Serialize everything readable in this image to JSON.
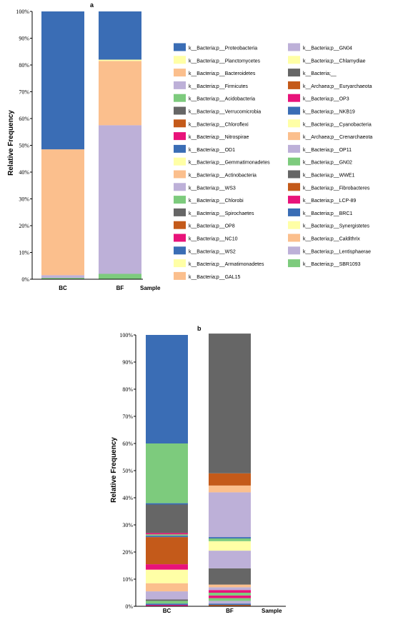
{
  "chart_data": [
    {
      "type": "bar",
      "stacked": true,
      "panel_label": "a",
      "xlabel": "Sample",
      "ylabel": "Relative Frequency",
      "categories": [
        "BC",
        "BF"
      ],
      "ylim": [
        0,
        100
      ],
      "yticks": [
        "0%",
        "10%",
        "20%",
        "30%",
        "40%",
        "50%",
        "60%",
        "70%",
        "80%",
        "90%",
        "100%"
      ],
      "legend_columns": 2,
      "legend": [
        {
          "name": "k__Bacteria;p__Proteobacteria",
          "color": "#3a6db5"
        },
        {
          "name": "k__Bacteria;p__Planctomycetes",
          "color": "#ffffa6"
        },
        {
          "name": "k__Bacteria;p__Bacteroidetes",
          "color": "#fbbf8d"
        },
        {
          "name": "k__Bacteria;p__Firmicutes",
          "color": "#bdb0d8"
        },
        {
          "name": "k__Bacteria;p__Acidobacteria",
          "color": "#7dcb7d"
        },
        {
          "name": "k__Bacteria;p__Verrucomicrobia",
          "color": "#666666"
        },
        {
          "name": "k__Bacteria;p__Chloroflexi",
          "color": "#c45a1a"
        },
        {
          "name": "k__Bacteria;p__Nitrospirae",
          "color": "#e8137a"
        },
        {
          "name": "k__Bacteria;p__OD1",
          "color": "#3a6db5"
        },
        {
          "name": "k__Bacteria;p__Gemmatimonadetes",
          "color": "#ffffa6"
        },
        {
          "name": "k__Bacteria;p__Actinobacteria",
          "color": "#fbbf8d"
        },
        {
          "name": "k__Bacteria;p__WS3",
          "color": "#bdb0d8"
        },
        {
          "name": "k__Bacteria;p__Chlorobi",
          "color": "#7dcb7d"
        },
        {
          "name": "k__Bacteria;p__Spirochaetes",
          "color": "#666666"
        },
        {
          "name": "k__Bacteria;p__OP8",
          "color": "#c45a1a"
        },
        {
          "name": "k__Bacteria;p__NC10",
          "color": "#e8137a"
        },
        {
          "name": "k__Bacteria;p__WS2",
          "color": "#3a6db5"
        },
        {
          "name": "k__Bacteria;p__Armatimonadetes",
          "color": "#ffffa6"
        },
        {
          "name": "k__Bacteria;p__GAL15",
          "color": "#fbbf8d"
        },
        {
          "name": "k__Bacteria;p__GN04",
          "color": "#bdb0d8"
        },
        {
          "name": "k__Bacteria;p__Chlamydiae",
          "color": "#ffffa6"
        },
        {
          "name": "k__Bacteria;__",
          "color": "#666666"
        },
        {
          "name": "k__Archaea;p__Euryarchaeota",
          "color": "#c45a1a"
        },
        {
          "name": "k__Bacteria;p__OP3",
          "color": "#e8137a"
        },
        {
          "name": "k__Bacteria;p__NKB19",
          "color": "#3a6db5"
        },
        {
          "name": "k__Bacteria;p__Cyanobacteria",
          "color": "#ffffa6"
        },
        {
          "name": "k__Archaea;p__Crenarchaeota",
          "color": "#fbbf8d"
        },
        {
          "name": "k__Bacteria;p__OP11",
          "color": "#bdb0d8"
        },
        {
          "name": "k__Bacteria;p__GN02",
          "color": "#7dcb7d"
        },
        {
          "name": "k__Bacteria;p__WWE1",
          "color": "#666666"
        },
        {
          "name": "k__Bacteria;p__Fibrobacteres",
          "color": "#c45a1a"
        },
        {
          "name": "k__Bacteria;p__LCP-89",
          "color": "#e8137a"
        },
        {
          "name": "k__Bacteria;p__BRC1",
          "color": "#3a6db5"
        },
        {
          "name": "k__Bacteria;p__Synergistetes",
          "color": "#ffffa6"
        },
        {
          "name": "k__Bacteria;p__Caldithrix",
          "color": "#fbbf8d"
        },
        {
          "name": "k__Bacteria;p__Lentisphaerae",
          "color": "#bdb0d8"
        },
        {
          "name": "k__Bacteria;p__SBR1093",
          "color": "#7dcb7d"
        }
      ],
      "stacks": [
        {
          "category": "BC",
          "segments": [
            {
              "value": 0.5,
              "color": "#7dcb7d"
            },
            {
              "value": 1.0,
              "color": "#bdb0d8"
            },
            {
              "value": 47.0,
              "color": "#fbbf8d"
            },
            {
              "value": 51.5,
              "color": "#3a6db5"
            }
          ]
        },
        {
          "category": "BF",
          "segments": [
            {
              "value": 2.0,
              "color": "#7dcb7d"
            },
            {
              "value": 55.5,
              "color": "#bdb0d8"
            },
            {
              "value": 24.0,
              "color": "#fbbf8d"
            },
            {
              "value": 0.5,
              "color": "#ffffa6"
            },
            {
              "value": 18.0,
              "color": "#3a6db5"
            }
          ]
        }
      ]
    },
    {
      "type": "bar",
      "stacked": true,
      "panel_label": "b",
      "xlabel": "Sample",
      "ylabel": "Relative Frequency",
      "categories": [
        "BC",
        "BF"
      ],
      "ylim": [
        0,
        100
      ],
      "yticks": [
        "0%",
        "10%",
        "20%",
        "30%",
        "40%",
        "50%",
        "60%",
        "70%",
        "80%",
        "90%",
        "100%"
      ],
      "stacks": [
        {
          "category": "BC",
          "segments": [
            {
              "value": 0.5,
              "color": "#e8137a"
            },
            {
              "value": 0.5,
              "color": "#3a6db5"
            },
            {
              "value": 1.0,
              "color": "#7dcb7d"
            },
            {
              "value": 0.5,
              "color": "#666666"
            },
            {
              "value": 3.0,
              "color": "#bdb0d8"
            },
            {
              "value": 3.0,
              "color": "#fbbf8d"
            },
            {
              "value": 5.0,
              "color": "#ffffa6"
            },
            {
              "value": 2.0,
              "color": "#e8137a"
            },
            {
              "value": 10.0,
              "color": "#c45a1a"
            },
            {
              "value": 0.5,
              "color": "#3a6db5"
            },
            {
              "value": 0.5,
              "color": "#7dcb7d"
            },
            {
              "value": 0.5,
              "color": "#e8137a"
            },
            {
              "value": 10.5,
              "color": "#666666"
            },
            {
              "value": 0.5,
              "color": "#3a6db5"
            },
            {
              "value": 22.0,
              "color": "#7dcb7d"
            },
            {
              "value": 40.0,
              "color": "#3a6db5"
            }
          ]
        },
        {
          "category": "BF",
          "segments": [
            {
              "value": 0.5,
              "color": "#c45a1a"
            },
            {
              "value": 0.5,
              "color": "#3a6db5"
            },
            {
              "value": 1.0,
              "color": "#bdb0d8"
            },
            {
              "value": 1.0,
              "color": "#7dcb7d"
            },
            {
              "value": 1.0,
              "color": "#e8137a"
            },
            {
              "value": 1.0,
              "color": "#7dcb7d"
            },
            {
              "value": 1.0,
              "color": "#e8137a"
            },
            {
              "value": 1.0,
              "color": "#bdb0d8"
            },
            {
              "value": 1.0,
              "color": "#fbbf8d"
            },
            {
              "value": 6.0,
              "color": "#666666"
            },
            {
              "value": 6.5,
              "color": "#bdb0d8"
            },
            {
              "value": 3.5,
              "color": "#ffffa6"
            },
            {
              "value": 1.0,
              "color": "#7dcb7d"
            },
            {
              "value": 0.5,
              "color": "#3a6db5"
            },
            {
              "value": 16.5,
              "color": "#bdb0d8"
            },
            {
              "value": 2.5,
              "color": "#fbbf8d"
            },
            {
              "value": 4.5,
              "color": "#c45a1a"
            },
            {
              "value": 51.5,
              "color": "#666666"
            }
          ]
        }
      ]
    }
  ]
}
